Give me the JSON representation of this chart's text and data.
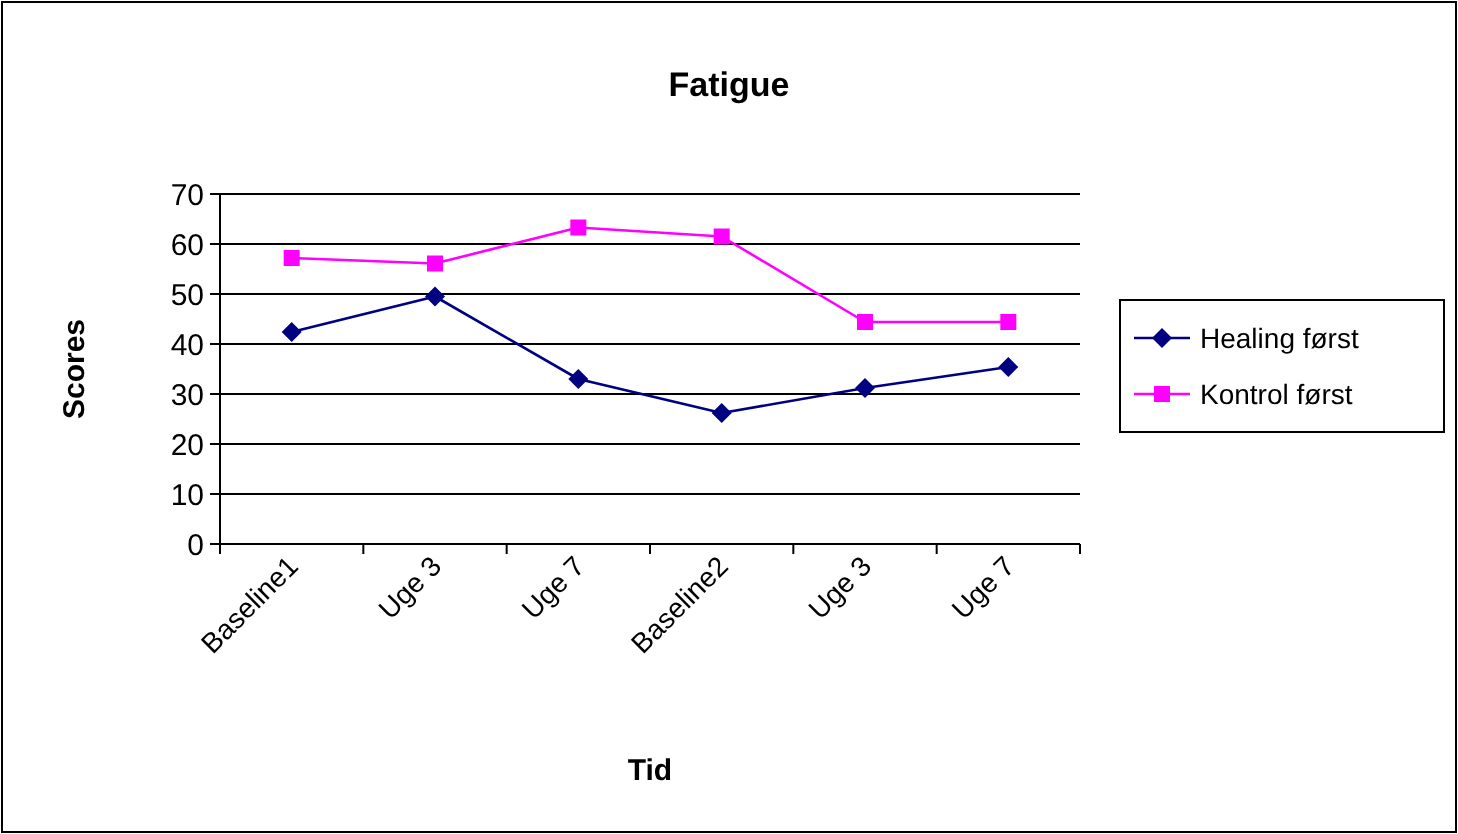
{
  "chart_data": {
    "type": "line",
    "title": "Fatigue",
    "xlabel": "Tid",
    "ylabel": "Scores",
    "categories": [
      "Baseline1",
      "Uge 3",
      "Uge 7",
      "Baseline2",
      "Uge 3",
      "Uge 7"
    ],
    "series": [
      {
        "name": "Healing først",
        "color": "#000080",
        "marker": "diamond",
        "values": [
          42.4,
          49.5,
          33,
          26.2,
          31.2,
          35.4
        ]
      },
      {
        "name": "Kontrol først",
        "color": "#ff00ff",
        "marker": "square",
        "values": [
          57.2,
          56.1,
          63.3,
          61.5,
          44.4,
          44.4
        ]
      }
    ],
    "ylim": [
      0,
      70
    ],
    "yticks": [
      0,
      10,
      20,
      30,
      40,
      50,
      60,
      70
    ],
    "grid": "y",
    "legend": "right"
  }
}
